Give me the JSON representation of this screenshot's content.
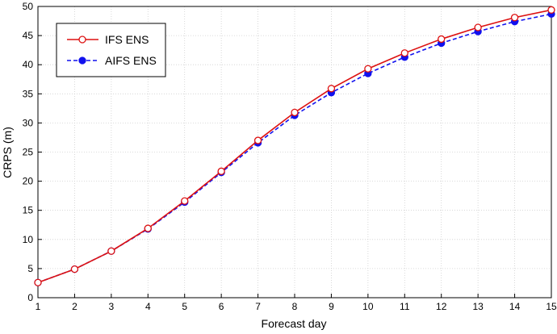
{
  "chart_data": {
    "type": "line",
    "title": "",
    "xlabel": "Forecast day",
    "ylabel": "CRPS (m)",
    "xlim": [
      1,
      15
    ],
    "ylim": [
      0,
      50
    ],
    "x_ticks": [
      "1",
      "2",
      "3",
      "4",
      "5",
      "6",
      "7",
      "8",
      "9",
      "10",
      "11",
      "12",
      "13",
      "14",
      "15"
    ],
    "y_ticks": [
      "0",
      "5",
      "10",
      "15",
      "20",
      "25",
      "30",
      "35",
      "40",
      "45",
      "50"
    ],
    "grid": true,
    "legend_position": "top-left",
    "x": [
      1,
      2,
      3,
      4,
      5,
      6,
      7,
      8,
      9,
      10,
      11,
      12,
      13,
      14,
      15
    ],
    "series": [
      {
        "name": "IFS ENS",
        "color": "#dd1111",
        "marker": "open-circle",
        "line_style": "solid",
        "values": [
          2.6,
          4.9,
          8.0,
          11.9,
          16.6,
          21.7,
          27.0,
          31.8,
          35.9,
          39.3,
          42.0,
          44.4,
          46.4,
          48.1,
          49.4
        ]
      },
      {
        "name": "AIFS ENS",
        "color": "#1111ee",
        "marker": "filled-circle",
        "line_style": "dashed",
        "values": [
          2.6,
          4.9,
          8.0,
          11.8,
          16.4,
          21.5,
          26.6,
          31.3,
          35.2,
          38.5,
          41.3,
          43.7,
          45.7,
          47.4,
          48.7
        ]
      }
    ]
  }
}
